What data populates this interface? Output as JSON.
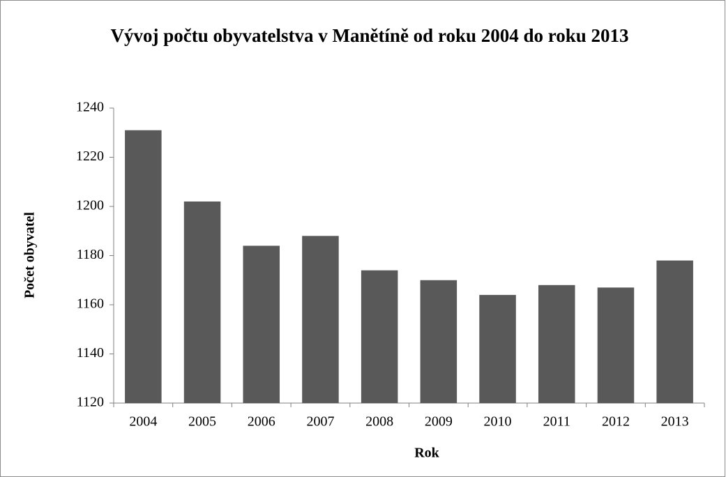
{
  "chart_data": {
    "type": "bar",
    "title": "Vývoj počtu obyvatelstva v Manětíně  od roku 2004 do roku 2013",
    "x_label": "Rok",
    "y_label": "Počet obyvatel",
    "categories": [
      "2004",
      "2005",
      "2006",
      "2007",
      "2008",
      "2009",
      "2010",
      "2011",
      "2012",
      "2013"
    ],
    "values": [
      1231,
      1202,
      1184,
      1188,
      1174,
      1170,
      1164,
      1168,
      1167,
      1178
    ],
    "color": "#595959",
    "ylim": [
      1120,
      1240
    ],
    "yticks": [
      1120,
      1140,
      1160,
      1180,
      1200,
      1220,
      1240
    ],
    "grid": false
  }
}
